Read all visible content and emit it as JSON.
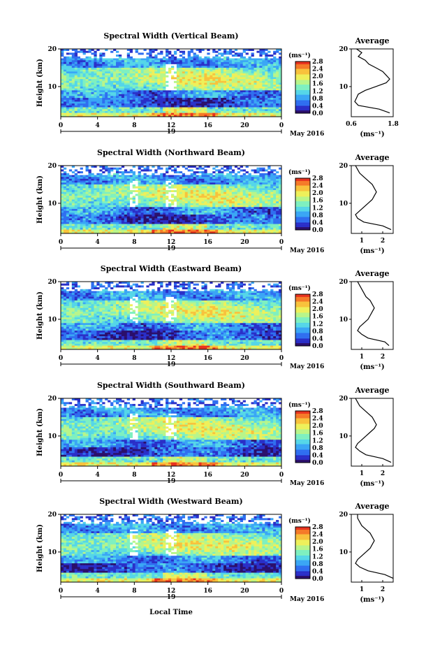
{
  "figure": {
    "xlabel_bottom": "Local Time",
    "date_label": "May 2016",
    "day_label": "19"
  },
  "colors": {
    "colormap": [
      "#2b0f6b",
      "#2a2fc8",
      "#2f6ef0",
      "#3aa6f5",
      "#55d6e8",
      "#7ef0c0",
      "#b8f58a",
      "#eef05a",
      "#f8c23c",
      "#f57a28",
      "#e8321e"
    ]
  },
  "chart_data": [
    {
      "type": "heatmap",
      "title": "Spectral Width (Vertical Beam)",
      "xlabel": "",
      "ylabel": "Height (km)",
      "xticks": [
        "0",
        "4",
        "8",
        "12",
        "16",
        "20",
        "0"
      ],
      "yticks": [
        "10",
        "20"
      ],
      "xlim": [
        0,
        24
      ],
      "ylim": [
        2,
        20
      ],
      "colorbar": {
        "unit": "(ms⁻¹)",
        "ticks": [
          "0.0",
          "0.4",
          "0.8",
          "1.2",
          "1.6",
          "2.0",
          "2.4",
          "2.8"
        ],
        "range": [
          0.0,
          2.8
        ]
      },
      "average_profile": {
        "title": "Average",
        "xlabel": "(ms⁻¹)",
        "xticks": [
          "0.6",
          "1.8"
        ],
        "xlim": [
          0.6,
          1.8
        ],
        "yticks": [
          "10",
          "20"
        ],
        "height": [
          20,
          19,
          18,
          17,
          16,
          15,
          14,
          13,
          12,
          11,
          10,
          9,
          8,
          7,
          6,
          5,
          4,
          3
        ],
        "values": [
          0.75,
          0.9,
          0.8,
          1.0,
          1.1,
          1.3,
          1.5,
          1.6,
          1.7,
          1.6,
          1.3,
          1.0,
          0.8,
          0.75,
          0.7,
          0.8,
          1.4,
          1.7
        ]
      }
    },
    {
      "type": "heatmap",
      "title": "Spectral Width (Northward Beam)",
      "xlabel": "",
      "ylabel": "Height (km)",
      "xticks": [
        "0",
        "4",
        "8",
        "12",
        "16",
        "20",
        "0"
      ],
      "yticks": [
        "10",
        "20"
      ],
      "xlim": [
        0,
        24
      ],
      "ylim": [
        2,
        20
      ],
      "colorbar": {
        "unit": "(ms⁻¹)",
        "ticks": [
          "0.0",
          "0.4",
          "0.8",
          "1.2",
          "1.6",
          "2.0",
          "2.4",
          "2.8"
        ],
        "range": [
          0.0,
          2.8
        ]
      },
      "average_profile": {
        "title": "Average",
        "xlabel": "(ms⁻¹)",
        "xticks": [
          "1",
          "2"
        ],
        "xlim": [
          0.5,
          2.5
        ],
        "yticks": [
          "10",
          "20"
        ],
        "height": [
          20,
          19,
          18,
          17,
          16,
          15,
          14,
          13,
          12,
          11,
          10,
          9,
          8,
          7,
          6,
          5,
          4,
          3
        ],
        "values": [
          0.7,
          0.8,
          0.9,
          1.1,
          1.3,
          1.5,
          1.6,
          1.7,
          1.6,
          1.5,
          1.3,
          1.1,
          0.9,
          0.7,
          0.8,
          1.1,
          2.0,
          2.4
        ]
      }
    },
    {
      "type": "heatmap",
      "title": "Spectral Width (Eastward Beam)",
      "xlabel": "",
      "ylabel": "Height (km)",
      "xticks": [
        "0",
        "4",
        "8",
        "12",
        "16",
        "20",
        "0"
      ],
      "yticks": [
        "10",
        "20"
      ],
      "xlim": [
        0,
        24
      ],
      "ylim": [
        2,
        20
      ],
      "colorbar": {
        "unit": "(ms⁻¹)",
        "ticks": [
          "0.0",
          "0.4",
          "0.8",
          "1.2",
          "1.6",
          "2.0",
          "2.4",
          "2.8"
        ],
        "range": [
          0.0,
          2.8
        ]
      },
      "average_profile": {
        "title": "Average",
        "xlabel": "(ms⁻¹)",
        "xticks": [
          "1",
          "2"
        ],
        "xlim": [
          0.5,
          2.5
        ],
        "yticks": [
          "10",
          "20"
        ],
        "height": [
          20,
          19,
          18,
          17,
          16,
          15,
          14,
          13,
          12,
          11,
          10,
          9,
          8,
          7,
          6,
          5,
          4,
          3
        ],
        "values": [
          0.8,
          0.9,
          1.0,
          1.1,
          1.2,
          1.4,
          1.5,
          1.6,
          1.5,
          1.4,
          1.3,
          1.1,
          0.9,
          0.8,
          1.0,
          1.3,
          2.1,
          2.3
        ]
      }
    },
    {
      "type": "heatmap",
      "title": "Spectral Width (Southward Beam)",
      "xlabel": "",
      "ylabel": "Height (km)",
      "xticks": [
        "0",
        "4",
        "8",
        "12",
        "16",
        "20",
        "0"
      ],
      "yticks": [
        "10",
        "20"
      ],
      "xlim": [
        0,
        24
      ],
      "ylim": [
        2,
        20
      ],
      "colorbar": {
        "unit": "(ms⁻¹)",
        "ticks": [
          "0.0",
          "0.4",
          "0.8",
          "1.2",
          "1.6",
          "2.0",
          "2.4",
          "2.8"
        ],
        "range": [
          0.0,
          2.8
        ]
      },
      "average_profile": {
        "title": "Average",
        "xlabel": "(ms⁻¹)",
        "xticks": [
          "1",
          "2"
        ],
        "xlim": [
          0.5,
          2.5
        ],
        "yticks": [
          "10",
          "20"
        ],
        "height": [
          20,
          19,
          18,
          17,
          16,
          15,
          14,
          13,
          12,
          11,
          10,
          9,
          8,
          7,
          6,
          5,
          4,
          3
        ],
        "values": [
          0.7,
          0.8,
          0.9,
          1.1,
          1.3,
          1.5,
          1.6,
          1.7,
          1.6,
          1.4,
          1.2,
          1.0,
          0.8,
          0.7,
          0.9,
          1.2,
          2.0,
          2.4
        ]
      }
    },
    {
      "type": "heatmap",
      "title": "Spectral Width (Westward Beam)",
      "xlabel": "Local Time",
      "ylabel": "Height (km)",
      "xticks": [
        "0",
        "4",
        "8",
        "12",
        "16",
        "20",
        "0"
      ],
      "yticks": [
        "10",
        "20"
      ],
      "xlim": [
        0,
        24
      ],
      "ylim": [
        2,
        20
      ],
      "colorbar": {
        "unit": "(ms⁻¹)",
        "ticks": [
          "0.0",
          "0.4",
          "0.8",
          "1.2",
          "1.6",
          "2.0",
          "2.4",
          "2.8"
        ],
        "range": [
          0.0,
          2.8
        ]
      },
      "average_profile": {
        "title": "Average",
        "xlabel": "(ms⁻¹)",
        "xticks": [
          "1",
          "2"
        ],
        "xlim": [
          0.5,
          2.5
        ],
        "yticks": [
          "10",
          "20"
        ],
        "height": [
          20,
          19,
          18,
          17,
          16,
          15,
          14,
          13,
          12,
          11,
          10,
          9,
          8,
          7,
          6,
          5,
          4,
          3
        ],
        "values": [
          0.8,
          0.8,
          0.9,
          1.0,
          1.2,
          1.4,
          1.5,
          1.6,
          1.5,
          1.4,
          1.2,
          1.0,
          0.8,
          0.7,
          0.9,
          1.3,
          2.1,
          2.5
        ]
      }
    }
  ]
}
